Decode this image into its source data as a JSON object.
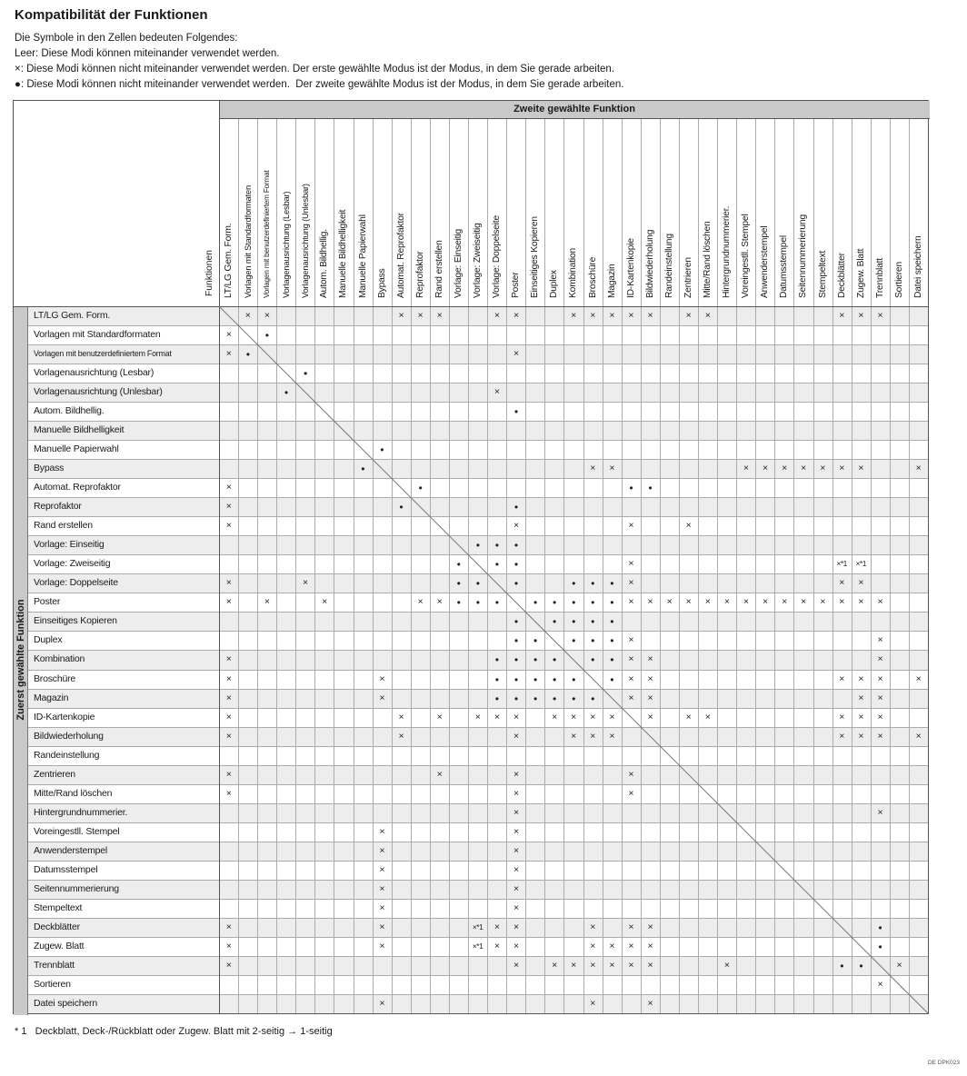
{
  "title": "Kompatibilität der Funktionen",
  "legend": [
    "Die Symbole in den Zellen bedeuten Folgendes:",
    "Leer: Diese Modi können miteinander verwendet werden.",
    "×: Diese Modi können nicht miteinander verwendet werden. Der erste gewählte Modus ist der Modus, in dem Sie gerade arbeiten.",
    "●: Diese Modi können nicht miteinander verwendet werden.  Der zweite gewählte Modus ist der Modus, in dem Sie gerade arbeiten."
  ],
  "table": {
    "corner_label": "Funktionen",
    "corner_label_vertical": "Funktionen",
    "col_group_header": "Zweite gewählte Funktion",
    "row_group_header": "Zuerst gewählte Funktion",
    "functions": [
      "LT/LG Gem. Form.",
      "Vorlagen mit Standardformaten",
      "Vorlagen mit benutzerdefiniertem Format",
      "Vorlagenausrichtung (Lesbar)",
      "Vorlagenausrichtung (Unlesbar)",
      "Autom. Bildhellig.",
      "Manuelle Bildhelligkeit",
      "Manuelle Papierwahl",
      "Bypass",
      "Automat. Reprofaktor",
      "Reprofaktor",
      "Rand erstellen",
      "Vorlage: Einseitig",
      "Vorlage: Zweiseitig",
      "Vorlage: Doppelseite",
      "Poster",
      "Einseitiges Kopieren",
      "Duplex",
      "Kombination",
      "Broschüre",
      "Magazin",
      "ID-Kartenkopie",
      "Bildwiederholung",
      "Randeinstellung",
      "Zentrieren",
      "Mitte/Rand löschen",
      "Hintergrundnummerier.",
      "Voreingestll. Stempel",
      "Anwenderstempel",
      "Datumsstempel",
      "Seitennummerierung",
      "Stempeltext",
      "Deckblätter",
      "Zugew. Blatt",
      "Trennblatt",
      "Sortieren",
      "Datei speichern"
    ],
    "mark_glyphs": {
      "x": "×",
      "d": "●",
      "x1": "×*1"
    },
    "cells": [
      [
        1,
        2,
        "x"
      ],
      [
        1,
        3,
        "x"
      ],
      [
        1,
        10,
        "x"
      ],
      [
        1,
        11,
        "x"
      ],
      [
        1,
        12,
        "x"
      ],
      [
        1,
        15,
        "x"
      ],
      [
        1,
        16,
        "x"
      ],
      [
        1,
        19,
        "x"
      ],
      [
        1,
        20,
        "x"
      ],
      [
        1,
        21,
        "x"
      ],
      [
        1,
        22,
        "x"
      ],
      [
        1,
        23,
        "x"
      ],
      [
        1,
        25,
        "x"
      ],
      [
        1,
        26,
        "x"
      ],
      [
        1,
        33,
        "x"
      ],
      [
        1,
        34,
        "x"
      ],
      [
        1,
        35,
        "x"
      ],
      [
        2,
        1,
        "x"
      ],
      [
        2,
        3,
        "d"
      ],
      [
        3,
        1,
        "x"
      ],
      [
        3,
        2,
        "d"
      ],
      [
        3,
        16,
        "x"
      ],
      [
        4,
        5,
        "d"
      ],
      [
        5,
        4,
        "d"
      ],
      [
        5,
        15,
        "x"
      ],
      [
        6,
        16,
        "d"
      ],
      [
        8,
        9,
        "d"
      ],
      [
        9,
        8,
        "d"
      ],
      [
        9,
        20,
        "x"
      ],
      [
        9,
        21,
        "x"
      ],
      [
        9,
        28,
        "x"
      ],
      [
        9,
        29,
        "x"
      ],
      [
        9,
        30,
        "x"
      ],
      [
        9,
        31,
        "x"
      ],
      [
        9,
        32,
        "x"
      ],
      [
        9,
        33,
        "x"
      ],
      [
        9,
        34,
        "x"
      ],
      [
        9,
        37,
        "x"
      ],
      [
        10,
        1,
        "x"
      ],
      [
        10,
        11,
        "d"
      ],
      [
        10,
        22,
        "d"
      ],
      [
        10,
        23,
        "d"
      ],
      [
        11,
        1,
        "x"
      ],
      [
        11,
        10,
        "d"
      ],
      [
        11,
        16,
        "d"
      ],
      [
        12,
        1,
        "x"
      ],
      [
        12,
        16,
        "x"
      ],
      [
        12,
        22,
        "x"
      ],
      [
        12,
        25,
        "x"
      ],
      [
        13,
        14,
        "d"
      ],
      [
        13,
        15,
        "d"
      ],
      [
        13,
        16,
        "d"
      ],
      [
        14,
        13,
        "d"
      ],
      [
        14,
        15,
        "d"
      ],
      [
        14,
        16,
        "d"
      ],
      [
        14,
        22,
        "x"
      ],
      [
        14,
        33,
        "x1"
      ],
      [
        14,
        34,
        "x1"
      ],
      [
        15,
        1,
        "x"
      ],
      [
        15,
        5,
        "x"
      ],
      [
        15,
        13,
        "d"
      ],
      [
        15,
        14,
        "d"
      ],
      [
        15,
        16,
        "d"
      ],
      [
        15,
        19,
        "d"
      ],
      [
        15,
        20,
        "d"
      ],
      [
        15,
        21,
        "d"
      ],
      [
        15,
        22,
        "x"
      ],
      [
        15,
        33,
        "x"
      ],
      [
        15,
        34,
        "x"
      ],
      [
        16,
        1,
        "x"
      ],
      [
        16,
        3,
        "x"
      ],
      [
        16,
        6,
        "x"
      ],
      [
        16,
        11,
        "x"
      ],
      [
        16,
        12,
        "x"
      ],
      [
        16,
        13,
        "d"
      ],
      [
        16,
        14,
        "d"
      ],
      [
        16,
        15,
        "d"
      ],
      [
        16,
        17,
        "d"
      ],
      [
        16,
        18,
        "d"
      ],
      [
        16,
        19,
        "d"
      ],
      [
        16,
        20,
        "d"
      ],
      [
        16,
        21,
        "d"
      ],
      [
        16,
        22,
        "x"
      ],
      [
        16,
        23,
        "x"
      ],
      [
        16,
        24,
        "x"
      ],
      [
        16,
        25,
        "x"
      ],
      [
        16,
        26,
        "x"
      ],
      [
        16,
        27,
        "x"
      ],
      [
        16,
        28,
        "x"
      ],
      [
        16,
        29,
        "x"
      ],
      [
        16,
        30,
        "x"
      ],
      [
        16,
        31,
        "x"
      ],
      [
        16,
        32,
        "x"
      ],
      [
        16,
        33,
        "x"
      ],
      [
        16,
        34,
        "x"
      ],
      [
        16,
        35,
        "x"
      ],
      [
        17,
        16,
        "d"
      ],
      [
        17,
        18,
        "d"
      ],
      [
        17,
        19,
        "d"
      ],
      [
        17,
        20,
        "d"
      ],
      [
        17,
        21,
        "d"
      ],
      [
        18,
        16,
        "d"
      ],
      [
        18,
        17,
        "d"
      ],
      [
        18,
        19,
        "d"
      ],
      [
        18,
        20,
        "d"
      ],
      [
        18,
        21,
        "d"
      ],
      [
        18,
        22,
        "x"
      ],
      [
        18,
        35,
        "x"
      ],
      [
        19,
        1,
        "x"
      ],
      [
        19,
        15,
        "d"
      ],
      [
        19,
        16,
        "d"
      ],
      [
        19,
        17,
        "d"
      ],
      [
        19,
        18,
        "d"
      ],
      [
        19,
        20,
        "d"
      ],
      [
        19,
        21,
        "d"
      ],
      [
        19,
        22,
        "x"
      ],
      [
        19,
        23,
        "x"
      ],
      [
        19,
        35,
        "x"
      ],
      [
        20,
        1,
        "x"
      ],
      [
        20,
        9,
        "x"
      ],
      [
        20,
        15,
        "d"
      ],
      [
        20,
        16,
        "d"
      ],
      [
        20,
        17,
        "d"
      ],
      [
        20,
        18,
        "d"
      ],
      [
        20,
        19,
        "d"
      ],
      [
        20,
        21,
        "d"
      ],
      [
        20,
        22,
        "x"
      ],
      [
        20,
        23,
        "x"
      ],
      [
        20,
        33,
        "x"
      ],
      [
        20,
        34,
        "x"
      ],
      [
        20,
        35,
        "x"
      ],
      [
        20,
        37,
        "x"
      ],
      [
        21,
        1,
        "x"
      ],
      [
        21,
        9,
        "x"
      ],
      [
        21,
        15,
        "d"
      ],
      [
        21,
        16,
        "d"
      ],
      [
        21,
        17,
        "d"
      ],
      [
        21,
        18,
        "d"
      ],
      [
        21,
        19,
        "d"
      ],
      [
        21,
        20,
        "d"
      ],
      [
        21,
        22,
        "x"
      ],
      [
        21,
        23,
        "x"
      ],
      [
        21,
        34,
        "x"
      ],
      [
        21,
        35,
        "x"
      ],
      [
        22,
        1,
        "x"
      ],
      [
        22,
        10,
        "x"
      ],
      [
        22,
        12,
        "x"
      ],
      [
        22,
        14,
        "x"
      ],
      [
        22,
        15,
        "x"
      ],
      [
        22,
        16,
        "x"
      ],
      [
        22,
        18,
        "x"
      ],
      [
        22,
        19,
        "x"
      ],
      [
        22,
        20,
        "x"
      ],
      [
        22,
        21,
        "x"
      ],
      [
        22,
        23,
        "x"
      ],
      [
        22,
        25,
        "x"
      ],
      [
        22,
        26,
        "x"
      ],
      [
        22,
        33,
        "x"
      ],
      [
        22,
        34,
        "x"
      ],
      [
        22,
        35,
        "x"
      ],
      [
        23,
        1,
        "x"
      ],
      [
        23,
        10,
        "x"
      ],
      [
        23,
        16,
        "x"
      ],
      [
        23,
        19,
        "x"
      ],
      [
        23,
        20,
        "x"
      ],
      [
        23,
        21,
        "x"
      ],
      [
        23,
        33,
        "x"
      ],
      [
        23,
        34,
        "x"
      ],
      [
        23,
        35,
        "x"
      ],
      [
        23,
        37,
        "x"
      ],
      [
        25,
        1,
        "x"
      ],
      [
        25,
        12,
        "x"
      ],
      [
        25,
        16,
        "x"
      ],
      [
        25,
        22,
        "x"
      ],
      [
        26,
        1,
        "x"
      ],
      [
        26,
        16,
        "x"
      ],
      [
        26,
        22,
        "x"
      ],
      [
        27,
        16,
        "x"
      ],
      [
        27,
        35,
        "x"
      ],
      [
        28,
        9,
        "x"
      ],
      [
        28,
        16,
        "x"
      ],
      [
        29,
        9,
        "x"
      ],
      [
        29,
        16,
        "x"
      ],
      [
        30,
        9,
        "x"
      ],
      [
        30,
        16,
        "x"
      ],
      [
        31,
        9,
        "x"
      ],
      [
        31,
        16,
        "x"
      ],
      [
        32,
        9,
        "x"
      ],
      [
        32,
        16,
        "x"
      ],
      [
        33,
        1,
        "x"
      ],
      [
        33,
        9,
        "x"
      ],
      [
        33,
        14,
        "x1"
      ],
      [
        33,
        15,
        "x"
      ],
      [
        33,
        16,
        "x"
      ],
      [
        33,
        20,
        "x"
      ],
      [
        33,
        22,
        "x"
      ],
      [
        33,
        23,
        "x"
      ],
      [
        33,
        35,
        "d"
      ],
      [
        34,
        1,
        "x"
      ],
      [
        34,
        9,
        "x"
      ],
      [
        34,
        14,
        "x1"
      ],
      [
        34,
        15,
        "x"
      ],
      [
        34,
        16,
        "x"
      ],
      [
        34,
        20,
        "x"
      ],
      [
        34,
        21,
        "x"
      ],
      [
        34,
        22,
        "x"
      ],
      [
        34,
        23,
        "x"
      ],
      [
        34,
        35,
        "d"
      ],
      [
        35,
        1,
        "x"
      ],
      [
        35,
        16,
        "x"
      ],
      [
        35,
        18,
        "x"
      ],
      [
        35,
        19,
        "x"
      ],
      [
        35,
        20,
        "x"
      ],
      [
        35,
        21,
        "x"
      ],
      [
        35,
        22,
        "x"
      ],
      [
        35,
        23,
        "x"
      ],
      [
        35,
        27,
        "x"
      ],
      [
        35,
        33,
        "d"
      ],
      [
        35,
        34,
        "d"
      ],
      [
        35,
        36,
        "x"
      ],
      [
        36,
        35,
        "x"
      ],
      [
        37,
        9,
        "x"
      ],
      [
        37,
        20,
        "x"
      ],
      [
        37,
        23,
        "x"
      ]
    ]
  },
  "footnote": "* 1   Deckblatt, Deck-/Rückblatt oder Zugew. Blatt mit 2-seitig → 1-seitig",
  "doc_code": "DE DPK023"
}
